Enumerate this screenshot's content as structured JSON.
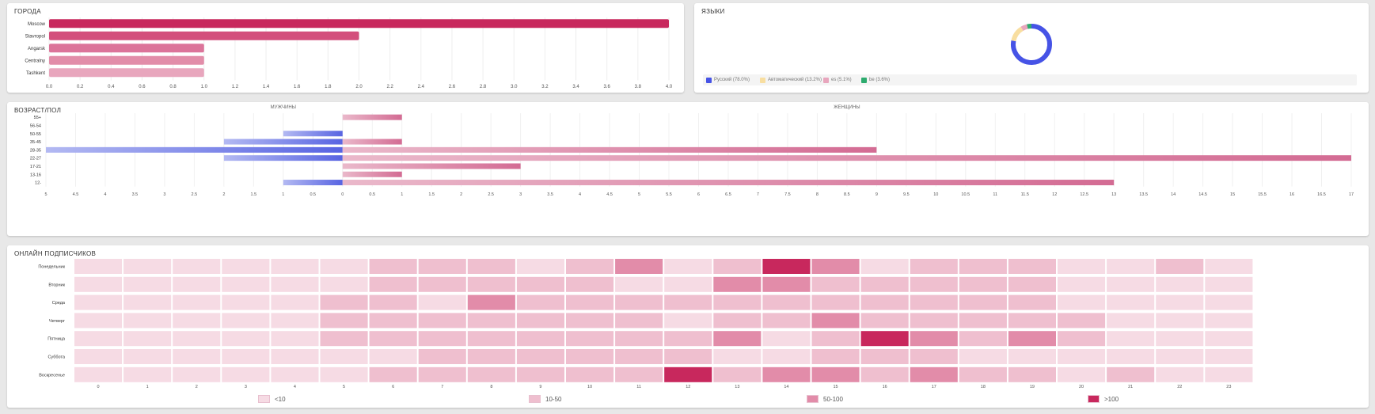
{
  "cities": {
    "title": "ГОРОДА",
    "chart_data": {
      "type": "bar",
      "orientation": "horizontal",
      "categories": [
        "Moscow",
        "Stavropol",
        "Angarsk",
        "Centralny",
        "Tashkent"
      ],
      "values": [
        4,
        2,
        1,
        1,
        1
      ],
      "xlim": [
        0,
        4
      ],
      "xticks": [
        "0.0",
        "0.2",
        "0.4",
        "0.6",
        "0.8",
        "1.0",
        "1.2",
        "1.4",
        "1.6",
        "1.8",
        "2.0",
        "2.2",
        "2.4",
        "2.6",
        "2.8",
        "3.0",
        "3.2",
        "3.4",
        "3.6",
        "3.8",
        "4.0"
      ],
      "colors": [
        "#c8285d",
        "#d34f7c",
        "#dc749a",
        "#e28da9",
        "#e8a6bd"
      ]
    }
  },
  "languages": {
    "title": "ЯЗЫКИ",
    "chart_data": {
      "type": "pie",
      "donut": true,
      "labels": [
        "Русский (78.0%)",
        "Автоматический (13.2%)",
        "es (5.1%)",
        "be (3.6%)"
      ],
      "values": [
        78.0,
        13.2,
        5.1,
        3.6
      ],
      "colors": [
        "#4653e6",
        "#f8dea0",
        "#e8a6bd",
        "#2dab6e"
      ],
      "legend": "bottom"
    }
  },
  "agegender": {
    "title": "ВОЗРАСТ/ПОЛ",
    "male_label": "МУЖЧИНЫ",
    "female_label": "ЖЕНЩИНЫ",
    "chart_data": {
      "type": "bar",
      "orientation": "horizontal",
      "categories": [
        "55+",
        "56-54",
        "50-55",
        "35-45",
        "28-35",
        "22-27",
        "17-21",
        "13-16",
        "12-"
      ],
      "series": [
        {
          "name": "МУЖЧИНЫ",
          "values": [
            0,
            0,
            1,
            2,
            5,
            2,
            0,
            0,
            1
          ],
          "color": "#5864e2"
        },
        {
          "name": "ЖЕНЩИНЫ",
          "values": [
            1,
            0,
            0,
            1,
            9,
            17,
            3,
            1,
            13
          ],
          "color": "#d36b93"
        }
      ],
      "xlim": [
        -5,
        17
      ],
      "xticks": [
        "5",
        "4.5",
        "4",
        "3.5",
        "3",
        "2.5",
        "2",
        "1.5",
        "1",
        "0.5",
        "0",
        "0.5",
        "1",
        "1.5",
        "2",
        "2.5",
        "3",
        "3.5",
        "4",
        "4.5",
        "5",
        "5.5",
        "6",
        "6.5",
        "7",
        "7.5",
        "8",
        "8.5",
        "9",
        "9.5",
        "10",
        "10.5",
        "11",
        "11.5",
        "12",
        "12.5",
        "13",
        "13.5",
        "14",
        "14.5",
        "15",
        "15.5",
        "16",
        "16.5",
        "17"
      ]
    }
  },
  "online": {
    "title": "ОНЛАЙН ПОДПИСЧИКОВ",
    "chart_data": {
      "type": "heatmap",
      "rows": [
        "Понедельник",
        "Вторник",
        "Среда",
        "Четверг",
        "Пятница",
        "Суббота",
        "Воскресенье"
      ],
      "columns": [
        "0",
        "1",
        "2",
        "3",
        "4",
        "5",
        "6",
        "7",
        "8",
        "9",
        "10",
        "11",
        "12",
        "13",
        "14",
        "15",
        "16",
        "17",
        "18",
        "19",
        "20",
        "21",
        "22",
        "23"
      ],
      "values": [
        [
          1,
          1,
          1,
          1,
          1,
          1,
          2,
          2,
          2,
          1,
          2,
          3,
          1,
          2,
          4,
          3,
          1,
          2,
          2,
          2,
          1,
          1,
          2,
          1
        ],
        [
          1,
          1,
          1,
          1,
          1,
          1,
          2,
          2,
          2,
          2,
          2,
          1,
          1,
          3,
          3,
          2,
          2,
          2,
          2,
          2,
          1,
          1,
          1,
          1
        ],
        [
          1,
          1,
          1,
          1,
          1,
          2,
          2,
          1,
          3,
          2,
          2,
          2,
          2,
          2,
          2,
          2,
          2,
          2,
          2,
          2,
          1,
          1,
          1,
          1
        ],
        [
          1,
          1,
          1,
          1,
          1,
          2,
          2,
          2,
          2,
          2,
          2,
          2,
          1,
          2,
          2,
          3,
          2,
          2,
          2,
          2,
          2,
          1,
          1,
          1
        ],
        [
          1,
          1,
          1,
          1,
          1,
          2,
          2,
          2,
          2,
          2,
          2,
          2,
          2,
          3,
          1,
          2,
          4,
          3,
          2,
          3,
          2,
          1,
          1,
          1
        ],
        [
          1,
          1,
          1,
          1,
          1,
          1,
          1,
          2,
          2,
          2,
          2,
          2,
          2,
          1,
          1,
          2,
          2,
          2,
          1,
          1,
          1,
          1,
          1,
          1
        ],
        [
          1,
          1,
          1,
          1,
          1,
          1,
          2,
          2,
          2,
          2,
          2,
          2,
          5,
          2,
          3,
          3,
          2,
          3,
          2,
          2,
          1,
          2,
          1,
          1
        ]
      ],
      "legend": [
        "<10",
        "10-50",
        "50-100",
        ">100"
      ],
      "colors": [
        "#f6dbe4",
        "#efbfcf",
        "#e28ca9",
        "#c8285d"
      ]
    }
  }
}
